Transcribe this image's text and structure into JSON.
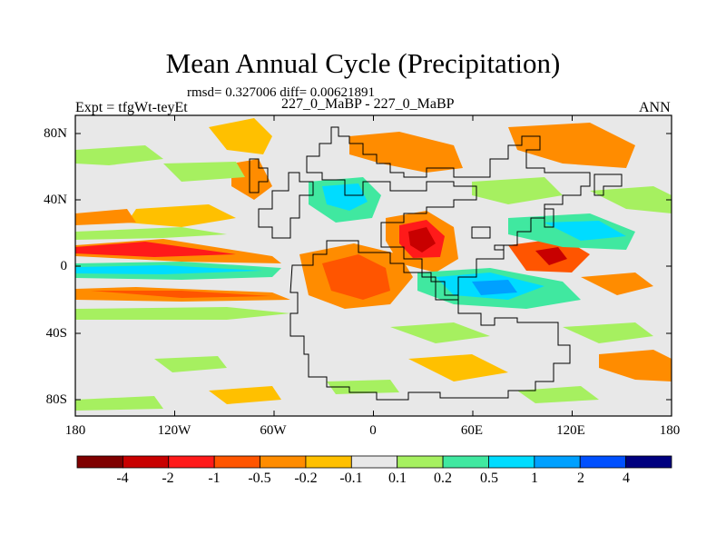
{
  "title": "Mean Annual Cycle (Precipitation)",
  "subtitle": "rmsd= 0.327006 diff= 0.00621891",
  "left_label": "Expt = tfgWt-teyEt",
  "center_label": "227_0_MaBP - 227_0_MaBP",
  "right_label": "ANN",
  "y_ticks": [
    "80N",
    "40N",
    "0",
    "40S",
    "80S"
  ],
  "x_ticks": [
    "180",
    "120W",
    "60W",
    "0",
    "60E",
    "120E",
    "180"
  ],
  "colorbar": {
    "colors": [
      "#7f0000",
      "#c80000",
      "#ff1a1a",
      "#ff5500",
      "#ff8c00",
      "#ffc000",
      "#e8e8e8",
      "#a6f060",
      "#40e8a0",
      "#00dcff",
      "#00a0ff",
      "#0050ff",
      "#00007f"
    ],
    "labels": [
      "-4",
      "-2",
      "-1",
      "-0.5",
      "-0.2",
      "-0.1",
      "0.1",
      "0.2",
      "0.5",
      "1",
      "2",
      "4"
    ]
  }
}
